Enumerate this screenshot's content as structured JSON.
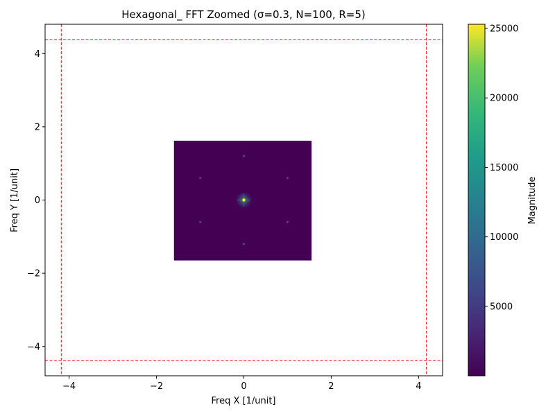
{
  "chart_data": {
    "type": "heatmap",
    "title": "Hexagonal_ FFT Zoomed (σ=0.3, N=100, R=5)",
    "xlabel": "Freq X [1/unit]",
    "ylabel": "Freq Y [1/unit]",
    "colorbar_label": "Magnitude",
    "colormap": "viridis",
    "xlim": [
      -4.55,
      4.55
    ],
    "ylim": [
      -4.8,
      4.8
    ],
    "x_ticks": [
      -4,
      -2,
      0,
      2,
      4
    ],
    "y_ticks": [
      -4,
      -2,
      0,
      2,
      4
    ],
    "x_tick_labels": [
      "−4",
      "−2",
      "0",
      "2",
      "4"
    ],
    "y_tick_labels": [
      "−4",
      "−2",
      "0",
      "2",
      "4"
    ],
    "image_extent": {
      "x": [
        -1.6,
        1.55
      ],
      "y": [
        -1.65,
        1.62
      ]
    },
    "peaks": [
      {
        "x": 0,
        "y": 0,
        "magnitude": 25000
      },
      {
        "x": 0,
        "y": 1.2,
        "magnitude": 1500
      },
      {
        "x": 0,
        "y": -1.2,
        "magnitude": 1500
      },
      {
        "x": 1.0,
        "y": 0.6,
        "magnitude": 1500
      },
      {
        "x": -1.0,
        "y": 0.6,
        "magnitude": 1500
      },
      {
        "x": 1.0,
        "y": -0.6,
        "magnitude": 1500
      },
      {
        "x": -1.0,
        "y": -0.6,
        "magnitude": 1500
      }
    ],
    "reference_lines": {
      "color": "#ff0000",
      "style": "dashed",
      "x": [
        -4.18,
        4.18
      ],
      "y": [
        -4.38,
        4.38
      ]
    },
    "colorbar": {
      "range": [
        0,
        25300
      ],
      "ticks": [
        5000,
        10000,
        15000,
        20000,
        25000
      ],
      "tick_labels": [
        "5000",
        "10000",
        "15000",
        "20000",
        "25000"
      ]
    },
    "grid": false
  }
}
